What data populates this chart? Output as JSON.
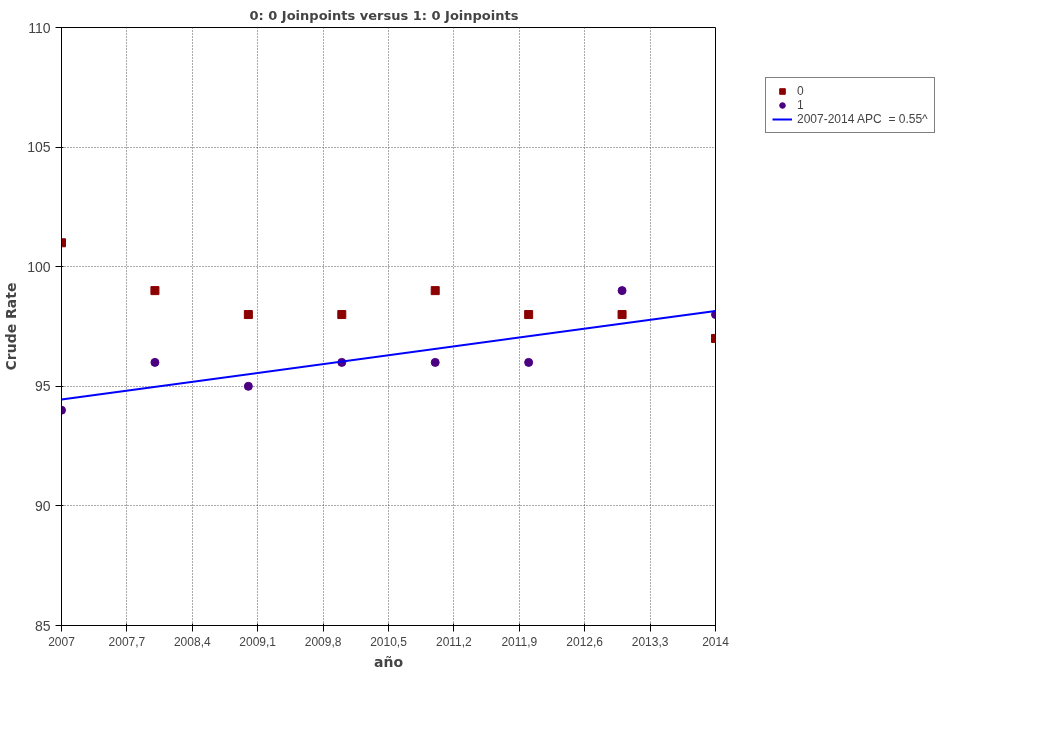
{
  "chart_data": {
    "type": "scatter",
    "title": "0: 0 Joinpoints  versus  1: 0 Joinpoints",
    "xlabel": "año",
    "ylabel": "Crude Rate",
    "x": [
      2007,
      2008,
      2009,
      2010,
      2011,
      2012,
      2013,
      2014
    ],
    "series": [
      {
        "name": "0",
        "color": "#8b0000",
        "marker": "square",
        "values": [
          101,
          99,
          98,
          98,
          99,
          98,
          98,
          97
        ]
      },
      {
        "name": "1",
        "color": "#4b0082",
        "marker": "circle",
        "values": [
          94,
          96,
          95,
          96,
          96,
          96,
          99,
          98
        ]
      },
      {
        "name": "2007-2014 APC  = 0.55^",
        "type": "line",
        "color": "#0000ff",
        "marker": "none",
        "x": [
          2007,
          2014
        ],
        "values": [
          94.45,
          98.15
        ]
      }
    ],
    "xlim": [
      2007,
      2014
    ],
    "xticks": [
      2007,
      {
        "value": 2007.7,
        "label": "2007,7"
      },
      {
        "value": 2008.4,
        "label": "2008,4"
      },
      {
        "value": 2009.1,
        "label": "2009,1"
      },
      {
        "value": 2009.8,
        "label": "2009,8"
      },
      {
        "value": 2010.5,
        "label": "2010,5"
      },
      {
        "value": 2011.2,
        "label": "2011,2"
      },
      {
        "value": 2011.9,
        "label": "2011,9"
      },
      {
        "value": 2012.6,
        "label": "2012,6"
      },
      {
        "value": 2013.3,
        "label": "2013,3"
      },
      2014
    ],
    "ylim": [
      85,
      110
    ],
    "yticks": [
      85,
      90,
      95,
      100,
      105,
      110
    ],
    "grid": true,
    "legend": "top right",
    "line_style": "solid"
  }
}
